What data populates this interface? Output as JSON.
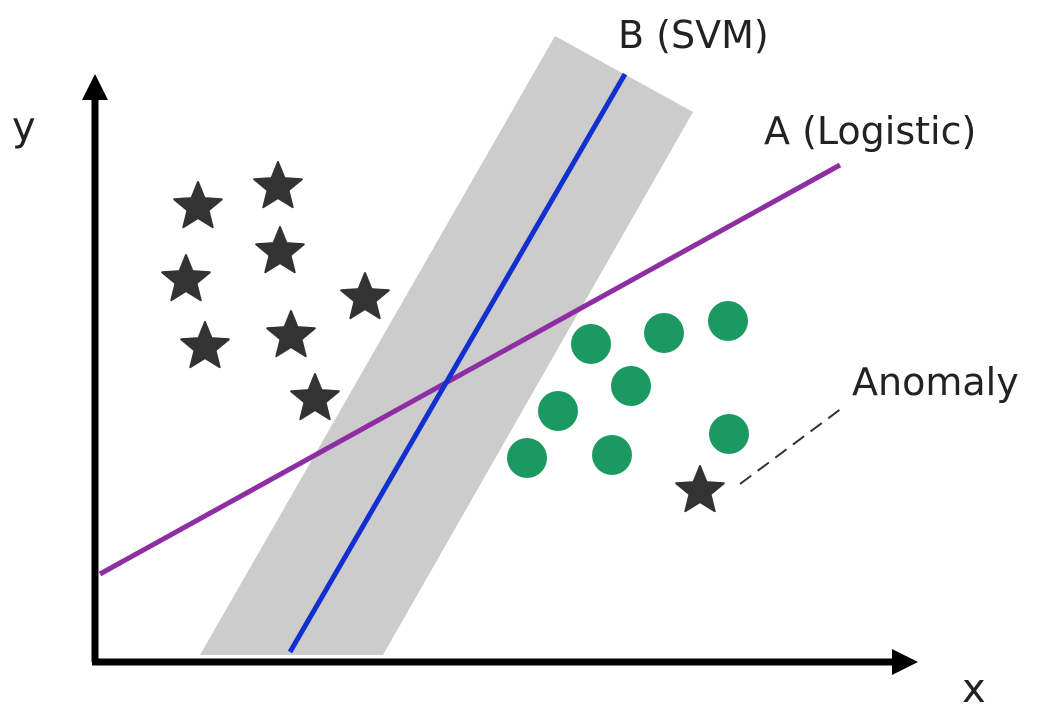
{
  "axes": {
    "x_label": "x",
    "y_label": "y"
  },
  "lines": {
    "logistic_label": "A (Logistic)",
    "svm_label": "B (SVM)"
  },
  "annotation": {
    "anomaly_label": "Anomaly"
  },
  "colors": {
    "axis": "#000000",
    "logistic": "#8e2ea3",
    "svm": "#1230d0",
    "margin_band": "#cccccc",
    "star": "#333333",
    "circle": "#1a9a60",
    "text": "#222222",
    "dash": "#333333"
  }
}
